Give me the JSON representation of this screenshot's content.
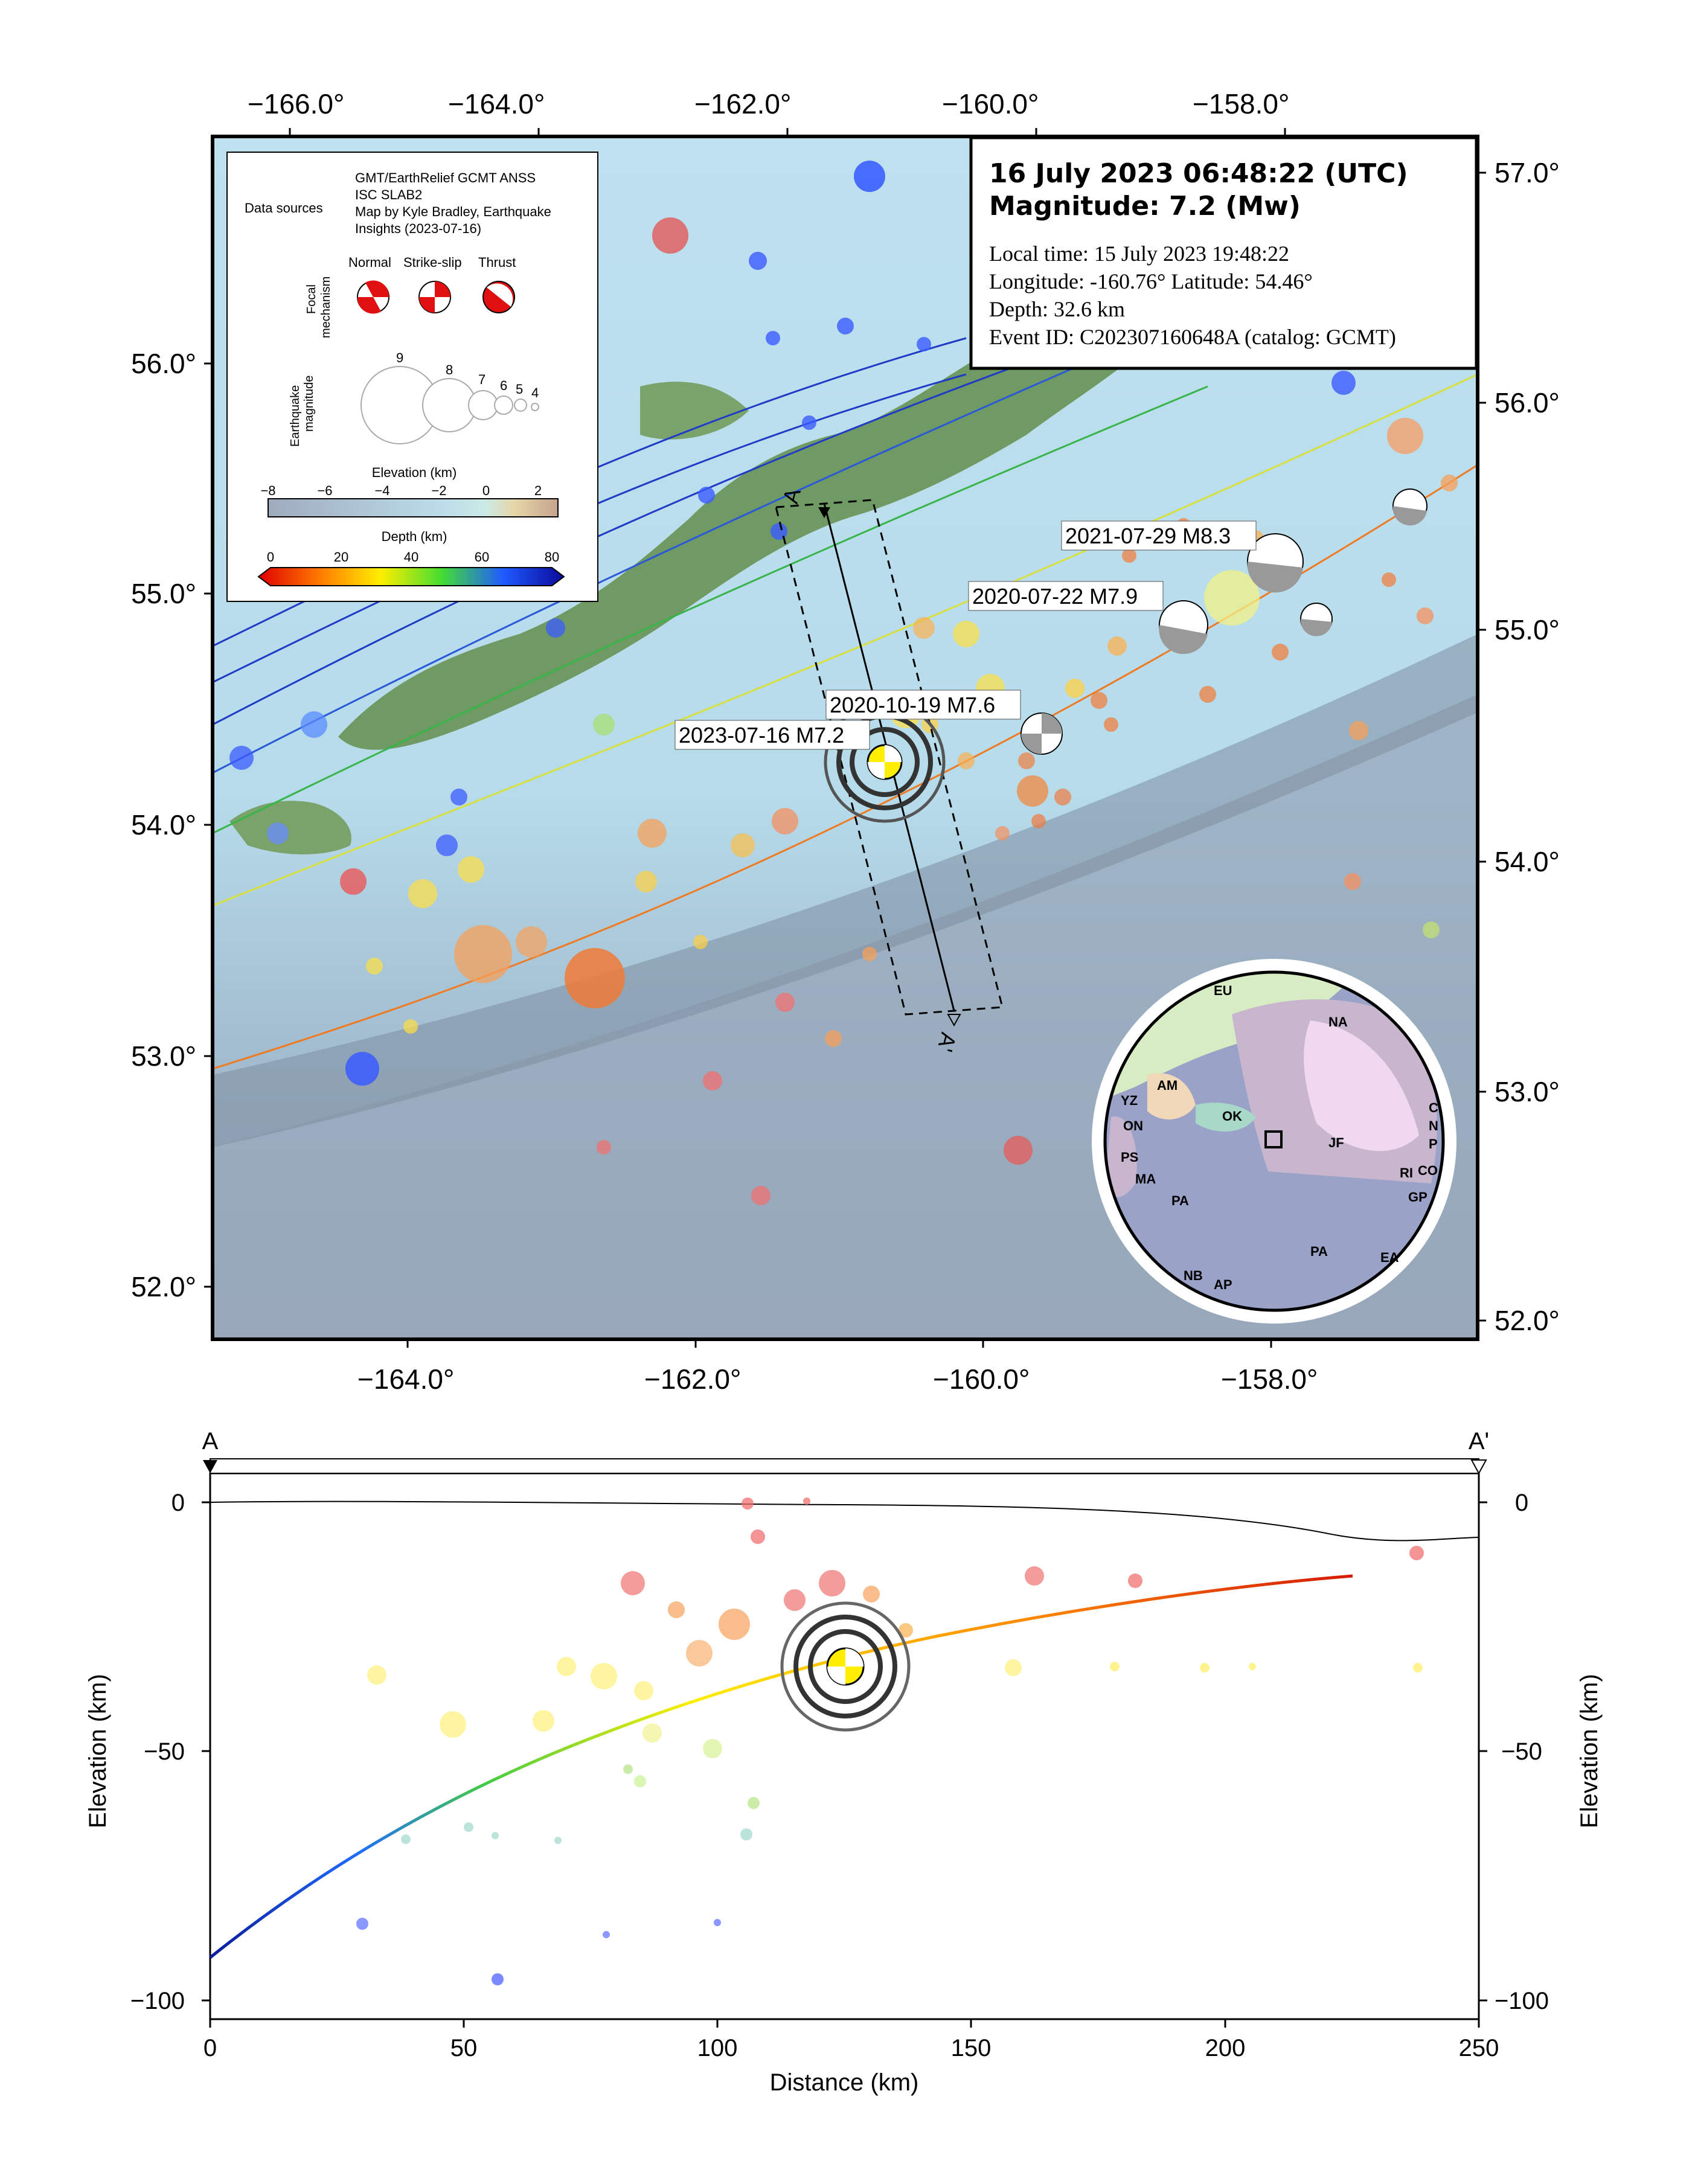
{
  "map": {
    "top_lon_ticks": [
      "−166.0°",
      "−164.0°",
      "−162.0°",
      "−160.0°",
      "−158.0°"
    ],
    "bottom_lon_ticks": [
      "−164.0°",
      "−162.0°",
      "−160.0°",
      "−158.0°"
    ],
    "left_lat_ticks": [
      "56.0°",
      "55.0°",
      "54.0°",
      "53.0°",
      "52.0°"
    ],
    "right_lat_ticks": [
      "57.0°",
      "56.0°",
      "55.0°",
      "54.0°",
      "53.0°",
      "52.0°"
    ],
    "profile_start_label": "A",
    "profile_end_label": "A'",
    "event_labels": [
      {
        "text": "2021-07-29 M8.3"
      },
      {
        "text": "2020-07-22 M7.9"
      },
      {
        "text": "2020-10-19 M7.6"
      },
      {
        "text": "2023-07-16 M7.2"
      }
    ]
  },
  "info_box": {
    "title_line1": "16 July 2023 06:48:22 (UTC)",
    "title_line2": "Magnitude: 7.2 (Mw)",
    "local_time": "Local time: 15 July 2023 19:48:22",
    "location": "Longitude: -160.76°  Latitude: 54.46°",
    "depth": "Depth: 32.6 km",
    "event_id": "Event ID: C202307160648A (catalog: GCMT)"
  },
  "legend": {
    "data_sources_label": "Data sources",
    "data_sources_text": [
      "GMT/EarthRelief GCMT ANSS",
      "ISC SLAB2",
      "Map by Kyle Bradley, Earthquake",
      "Insights (2023-07-16)"
    ],
    "focal_title": [
      "Focal",
      "mechanism"
    ],
    "focal_types": [
      "Normal",
      "Strike-slip",
      "Thrust"
    ],
    "magnitude_title": [
      "Earthquake",
      "magnitude"
    ],
    "magnitudes": [
      "9",
      "8",
      "7",
      "6",
      "5",
      "4"
    ],
    "elevation_title": "Elevation (km)",
    "elevation_ticks": [
      "−8",
      "−6",
      "−4",
      "−2",
      "0",
      "2"
    ],
    "depth_title": "Depth (km)",
    "depth_ticks": [
      "0",
      "20",
      "40",
      "60",
      "80"
    ]
  },
  "inset": {
    "plates": [
      "EU",
      "NA",
      "AM",
      "OK",
      "YZ",
      "ON",
      "PS",
      "MA",
      "PA",
      "PA",
      "JF",
      "RI",
      "CO",
      "GP",
      "EA",
      "C",
      "N",
      "P",
      "NB",
      "AP"
    ]
  },
  "profile": {
    "start_label": "A",
    "end_label": "A'",
    "xlabel": "Distance (km)",
    "ylabel_left": "Elevation (km)",
    "ylabel_right": "Elevation (km)",
    "x_ticks": [
      "0",
      "50",
      "100",
      "150",
      "200",
      "250"
    ],
    "y_ticks": [
      "0",
      "−50",
      "−100"
    ],
    "xlim": [
      0,
      250
    ],
    "ylim": [
      -100,
      0
    ]
  },
  "colors": {
    "frame": "#000000",
    "ocean": "#a9cfe3",
    "land": "#6f9a63",
    "trench": "#7e8ea0"
  }
}
